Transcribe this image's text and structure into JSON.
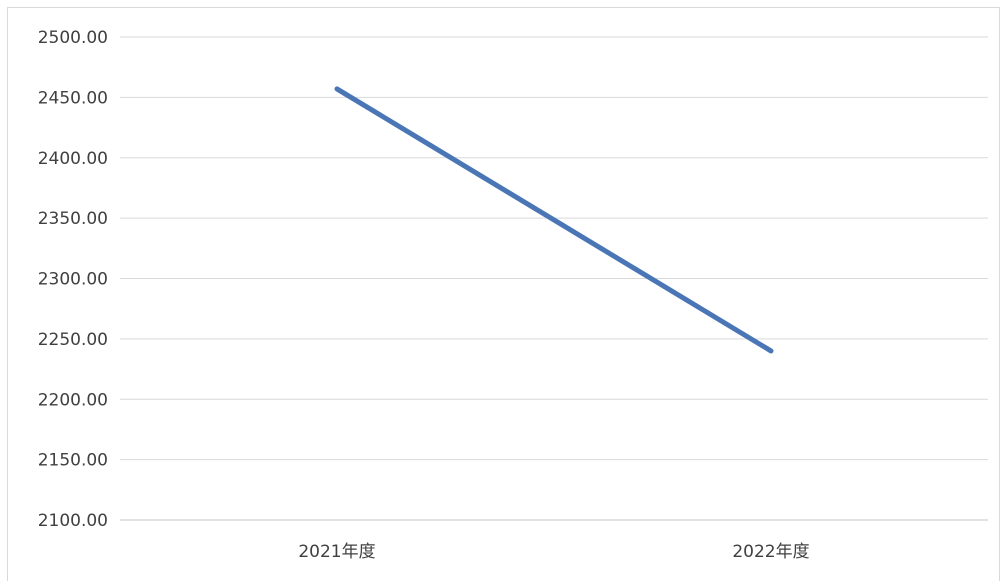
{
  "chart_data": {
    "type": "line",
    "categories": [
      "2021年度",
      "2022年度"
    ],
    "series": [
      {
        "values": [
          2457,
          2240
        ]
      }
    ],
    "ylim": [
      2100,
      2500
    ],
    "yticks": [
      "2100.00",
      "2150.00",
      "2200.00",
      "2250.00",
      "2300.00",
      "2350.00",
      "2400.00",
      "2450.00",
      "2500.00"
    ],
    "grid": true,
    "legend": "none",
    "colors": {
      "line": "#4a76b5",
      "grid": "#d9d9d9",
      "text": "#404040"
    }
  }
}
